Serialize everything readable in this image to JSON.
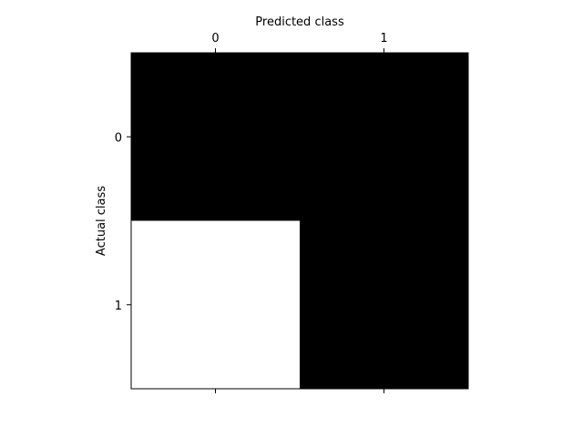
{
  "chart_data": {
    "type": "heatmap",
    "title": "",
    "xlabel": "Predicted class",
    "ylabel": "Actual class",
    "x_categories": [
      "0",
      "1"
    ],
    "y_categories": [
      "0",
      "1"
    ],
    "xaxis_position": "top",
    "grid": false,
    "colormap": "grayscale",
    "cells": [
      {
        "actual": "0",
        "predicted": "0",
        "color": "#000000"
      },
      {
        "actual": "0",
        "predicted": "1",
        "color": "#000000"
      },
      {
        "actual": "1",
        "predicted": "0",
        "color": "#ffffff"
      },
      {
        "actual": "1",
        "predicted": "1",
        "color": "#000000"
      }
    ]
  }
}
